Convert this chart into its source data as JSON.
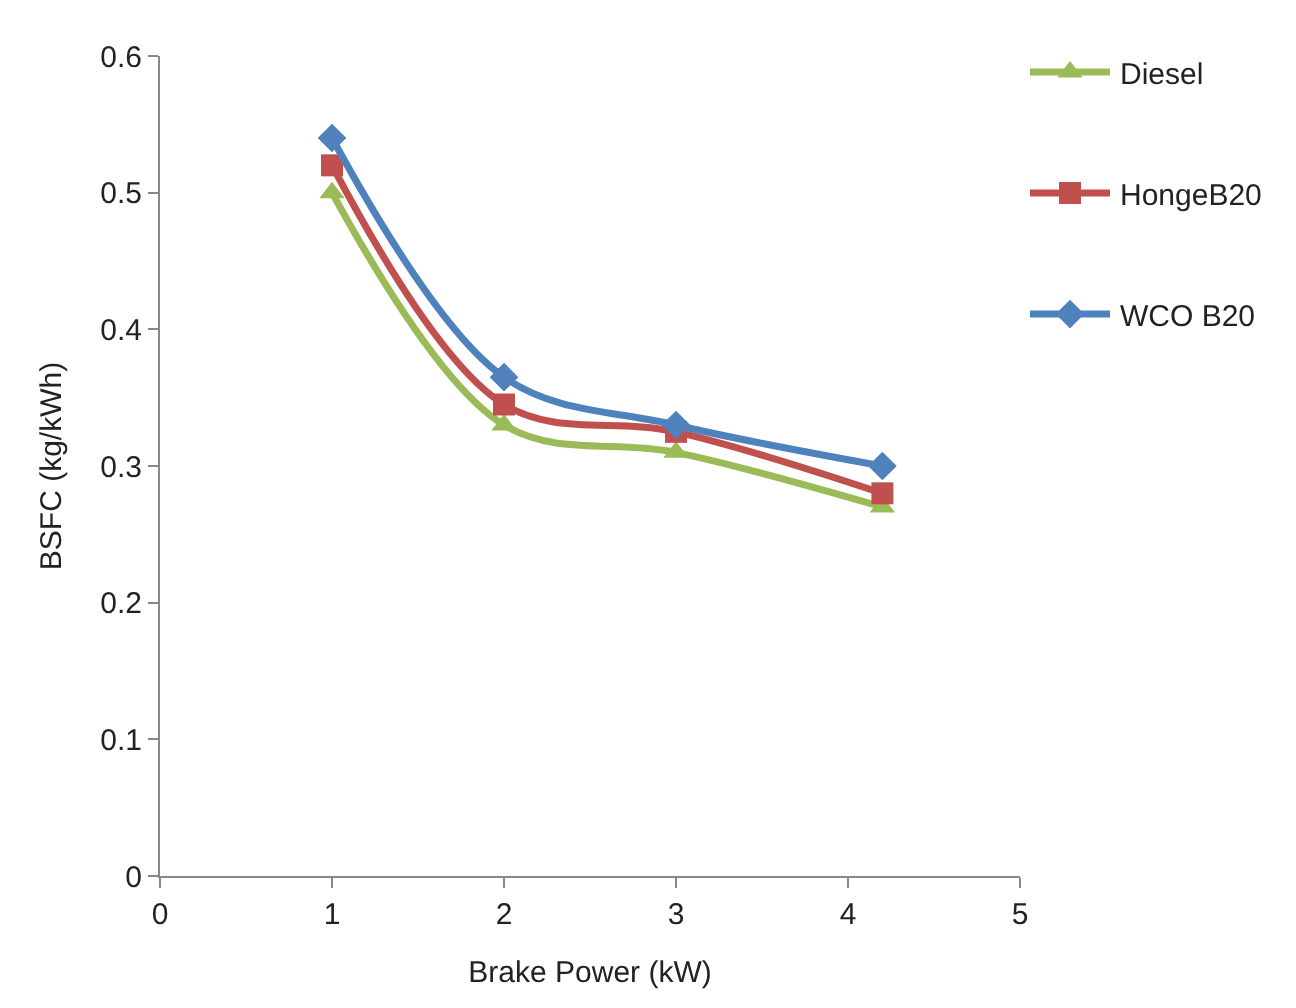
{
  "chart_data": {
    "type": "line",
    "xlabel": "Brake Power (kW)",
    "ylabel": "BSFC (kg/kWh)",
    "x": [
      1,
      2,
      3,
      4.2
    ],
    "series": [
      {
        "name": "Diesel",
        "color": "#9bbb59",
        "marker": "triangle",
        "values": [
          0.5,
          0.33,
          0.31,
          0.27
        ]
      },
      {
        "name": "HongeB20",
        "color": "#c0504d",
        "marker": "square",
        "values": [
          0.52,
          0.345,
          0.325,
          0.28
        ]
      },
      {
        "name": "WCO B20",
        "color": "#4f81bd",
        "marker": "diamond",
        "values": [
          0.54,
          0.365,
          0.33,
          0.3
        ]
      }
    ],
    "xlim": [
      0,
      5
    ],
    "xticks": [
      0,
      1,
      2,
      3,
      4,
      5
    ],
    "ylim": [
      0,
      0.6
    ],
    "yticks": [
      0,
      0.1,
      0.2,
      0.3,
      0.4,
      0.5,
      0.6
    ],
    "legend": "top right",
    "line_style": "solid"
  }
}
